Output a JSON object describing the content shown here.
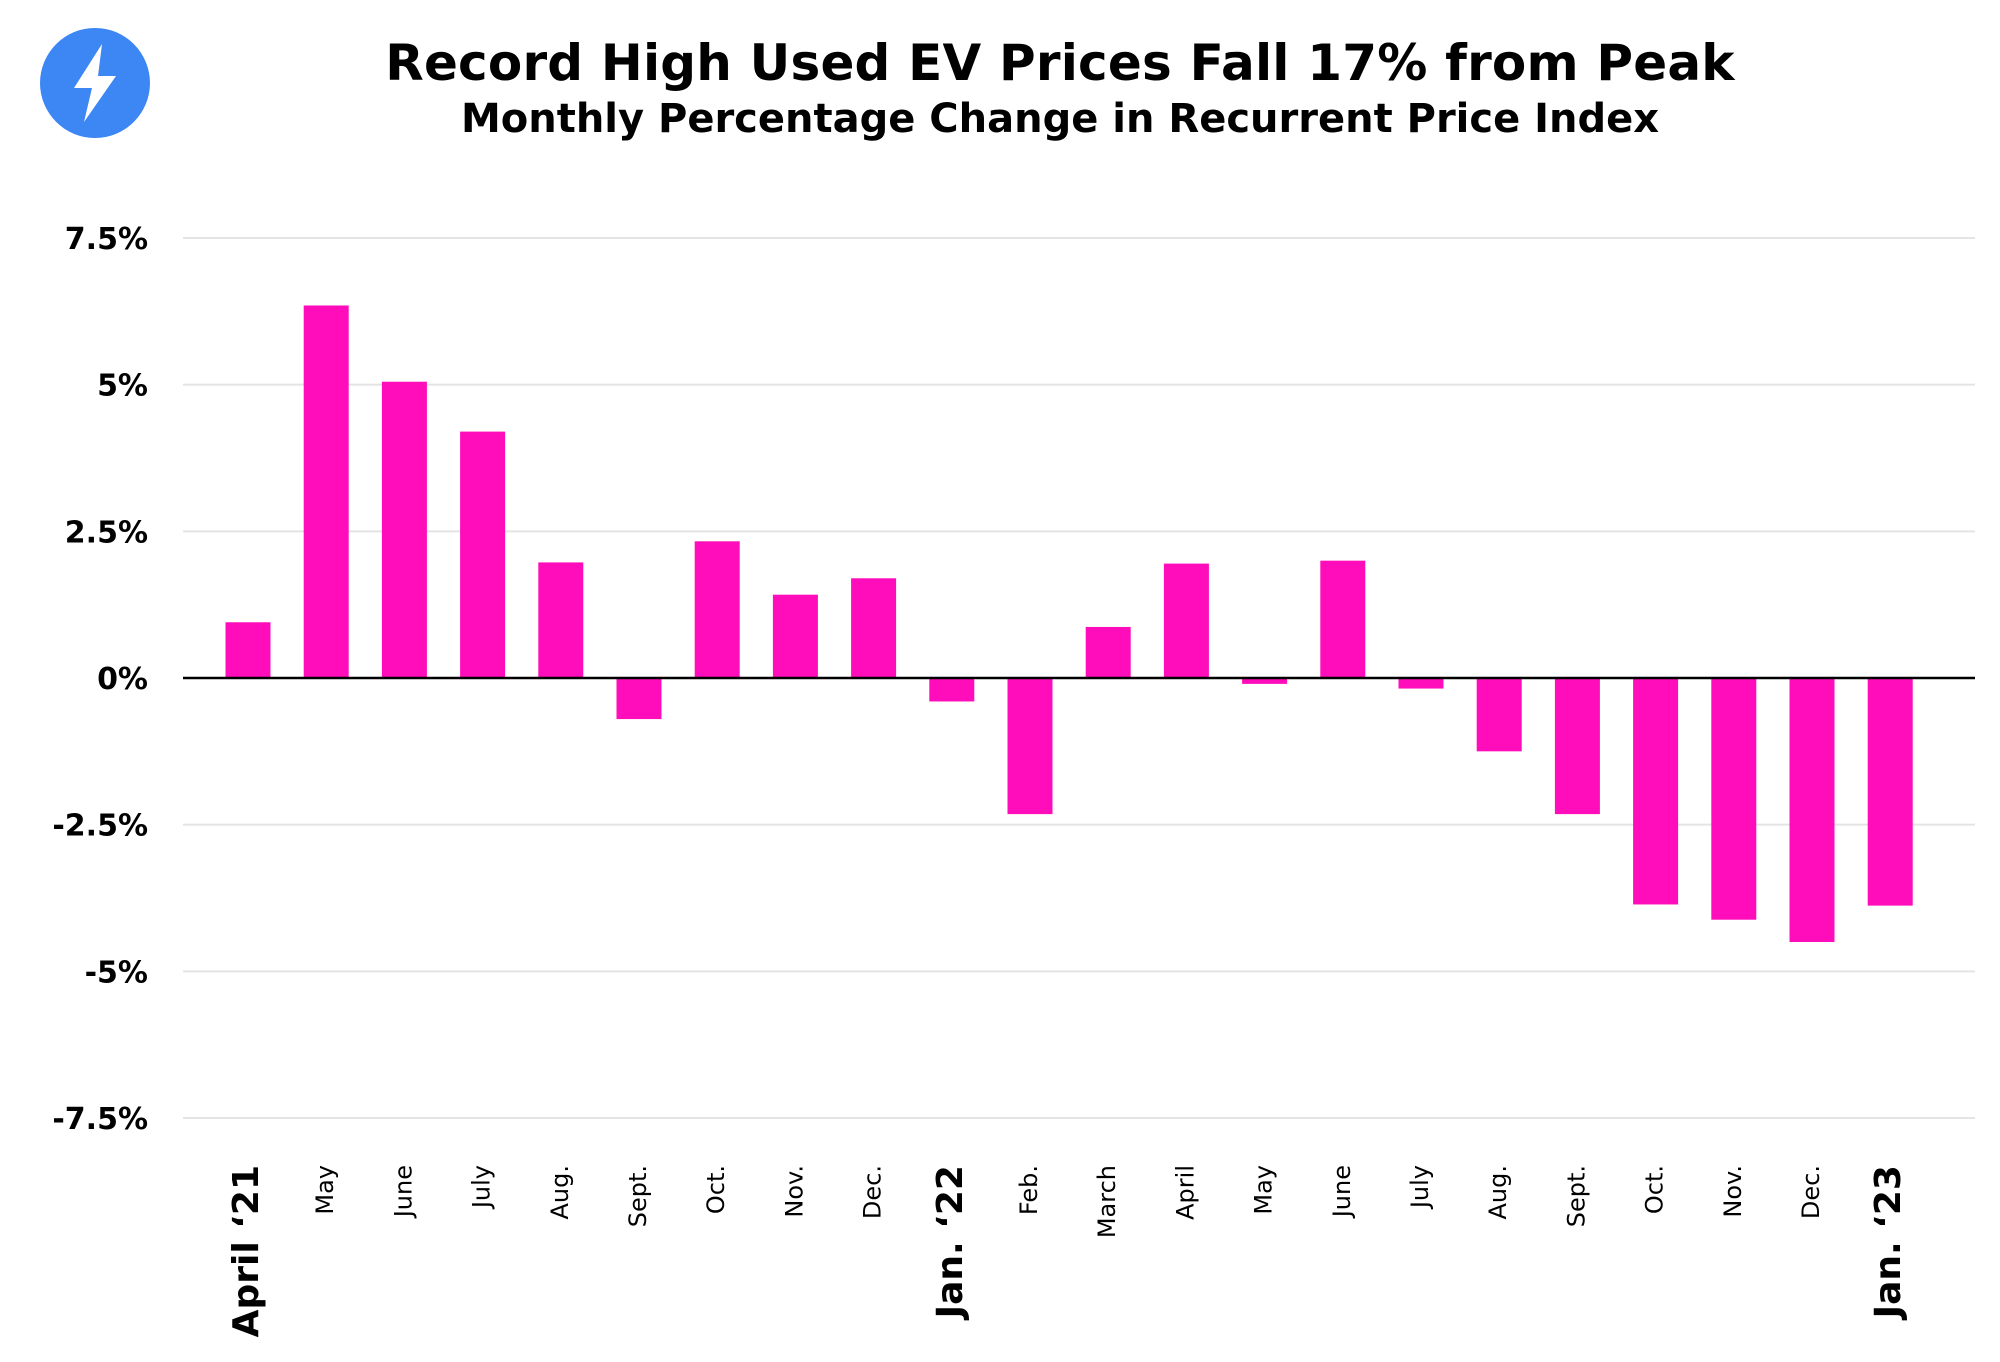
{
  "header": {
    "title": "Record High Used EV Prices Fall 17% from Peak",
    "subtitle": "Monthly Percentage Change in Recurrent Price Index",
    "logo_icon": "lightning-bolt-icon",
    "logo_color": "#3D87F5"
  },
  "chart_data": {
    "type": "bar",
    "title": "Record High Used EV Prices Fall 17% from Peak",
    "subtitle": "Monthly Percentage Change in Recurrent Price Index",
    "xlabel": "",
    "ylabel": "",
    "categories": [
      "April ‘21",
      "May",
      "June",
      "July",
      "Aug.",
      "Sept.",
      "Oct.",
      "Nov.",
      "Dec.",
      "Jan. ‘22",
      "Feb.",
      "March",
      "April",
      "May",
      "June",
      "July",
      "Aug.",
      "Sept.",
      "Oct.",
      "Nov.",
      "Dec.",
      "Jan. ‘23"
    ],
    "major_categories": [
      "April ‘21",
      "Jan. ‘22",
      "Jan. ‘23"
    ],
    "values": [
      0.95,
      6.35,
      5.05,
      4.2,
      1.97,
      -0.7,
      2.33,
      1.42,
      1.7,
      -0.4,
      -2.32,
      0.87,
      1.95,
      -0.1,
      2.0,
      -0.18,
      -1.25,
      -2.32,
      -3.86,
      -4.12,
      -4.5,
      -3.88
    ],
    "ylim": [
      -7.5,
      7.5
    ],
    "yticks": [
      7.5,
      5,
      2.5,
      0,
      -2.5,
      -5,
      -7.5
    ],
    "ytick_labels": [
      "7.5%",
      "5%",
      "2.5%",
      "0%",
      "-2.5%",
      "-5%",
      "-7.5%"
    ],
    "bar_color": "#FF0DBB",
    "grid": true,
    "legend": "none"
  }
}
